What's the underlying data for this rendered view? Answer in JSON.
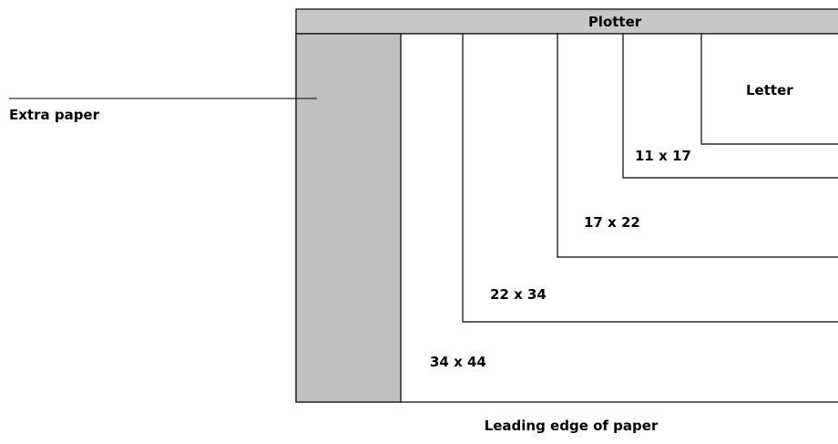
{
  "diagram": {
    "header_label": "Plotter",
    "extra_paper_label": "Extra paper",
    "leading_edge_label": "Leading edge of paper",
    "sizes": [
      {
        "label": "34 x 44"
      },
      {
        "label": "22 x 34"
      },
      {
        "label": "17 x 22"
      },
      {
        "label": "11 x 17"
      },
      {
        "label": "Letter"
      }
    ],
    "colors": {
      "header_fill": "#c8c8c8",
      "extra_paper_fill": "#c0c0c0",
      "line": "#000000",
      "background": "#ffffff"
    }
  }
}
